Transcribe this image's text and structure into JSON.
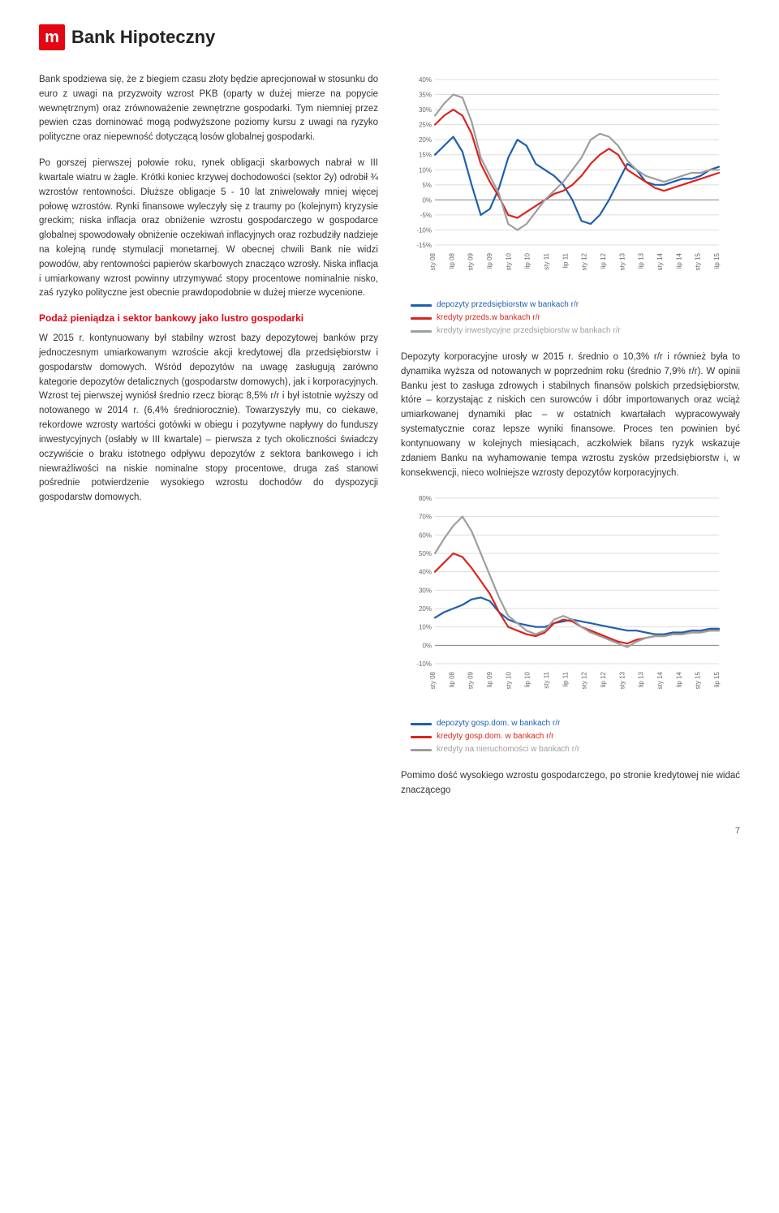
{
  "header": {
    "logo_letter": "m",
    "bank_name": "Bank Hipoteczny"
  },
  "left": {
    "p1": "Bank spodziewa się, że z biegiem czasu złoty będzie aprecjonował w stosunku do euro z uwagi na przyzwoity wzrost PKB (oparty w dużej mierze na popycie wewnętrznym) oraz zrównoważenie zewnętrzne gospodarki. Tym niemniej przez pewien czas dominować mogą podwyższone poziomy kursu z uwagi na ryzyko polityczne oraz niepewność dotyczącą losów globalnej gospodarki.",
    "p2": "Po gorszej pierwszej połowie roku, rynek obligacji skarbowych nabrał w III kwartale wiatru w żagle. Krótki koniec krzywej dochodowości (sektor 2y) odrobił ¾ wzrostów rentowności. Dłuższe obligacje 5 - 10 lat zniwelowały mniej więcej połowę wzrostów. Rynki finansowe wyleczyły się z traumy po (kolejnym) kryzysie greckim; niska inflacja oraz obniżenie wzrostu gospodarczego w gospodarce globalnej spowodowały obniżenie oczekiwań inflacyjnych oraz rozbudziły nadzieje na kolejną rundę stymulacji monetarnej. W obecnej chwili Bank nie widzi powodów, aby rentowności papierów skarbowych znacząco wzrosły. Niska inflacja i umiarkowany wzrost powinny utrzymywać stopy procentowe nominalnie nisko, zaś ryzyko polityczne jest obecnie prawdopodobnie w dużej mierze wycenione.",
    "section_title": "Podaż pieniądza i sektor bankowy jako lustro gospodarki",
    "p3": "W 2015 r. kontynuowany był stabilny wzrost bazy depozytowej banków przy jednoczesnym umiarkowanym wzroście akcji kredytowej dla przedsiębiorstw i gospodarstw domowych. Wśród depozytów na uwagę zasługują zarówno kategorie depozytów detalicznych (gospodarstw domowych), jak i korporacyjnych. Wzrost tej pierwszej wyniósł średnio rzecz biorąc 8,5% r/r i był istotnie wyższy od notowanego w 2014 r. (6,4% średniorocznie). Towarzyszyły mu, co ciekawe, rekordowe wzrosty wartości gotówki w obiegu i pozytywne napływy do funduszy inwestycyjnych (osłabły w III kwartale) – pierwsza z tych okoliczności świadczy oczywiście o braku istotnego odpływu depozytów z sektora bankowego i ich niewrażliwości na niskie nominalne stopy procentowe, druga zaś stanowi pośrednie potwierdzenie wysokiego wzrostu dochodów do dyspozycji gospodarstw domowych."
  },
  "right": {
    "p1": "Depozyty korporacyjne urosły w 2015 r. średnio o 10,3% r/r i również była to dynamika wyższa od notowanych w poprzednim roku (średnio 7,9% r/r). W opinii Banku jest to zasługa zdrowych i stabilnych finansów polskich przedsiębiorstw, które – korzystając z niskich cen surowców i dóbr importowanych oraz wciąż umiarkowanej dynamiki płac – w ostatnich kwartałach wypracowywały systematycznie coraz lepsze wyniki finansowe. Proces ten powinien być kontynuowany w kolejnych miesiącach, aczkolwiek bilans ryzyk wskazuje zdaniem Banku na wyhamowanie tempa wzrostu zysków przedsiębiorstw i, w konsekwencji, nieco wolniejsze wzrosty depozytów korporacyjnych.",
    "p2": "Pomimo dość wysokiego wzrostu gospodarczego, po stronie kredytowej nie widać znaczącego"
  },
  "chart1": {
    "type": "line",
    "ylim": [
      -15,
      40
    ],
    "ytick_step": 5,
    "yticks": [
      "40%",
      "35%",
      "30%",
      "25%",
      "20%",
      "15%",
      "10%",
      "5%",
      "0%",
      "-5%",
      "-10%",
      "-15%"
    ],
    "xlabels": [
      "sty 08",
      "lip 08",
      "sty 09",
      "lip 09",
      "sty 10",
      "lip 10",
      "sty 11",
      "lip 11",
      "sty 12",
      "lip 12",
      "sty 13",
      "lip 13",
      "sty 14",
      "lip 14",
      "sty 15",
      "lip 15"
    ],
    "background_color": "#ffffff",
    "grid_color": "#dddddd",
    "axis_color": "#888888",
    "label_fontsize": 8,
    "line_width": 2.2,
    "series": [
      {
        "name": "depozyty przedsiębiorstw w bankach r/r",
        "color": "#1f5fb0",
        "values": [
          15,
          18,
          21,
          16,
          5,
          -5,
          -3,
          4,
          14,
          20,
          18,
          12,
          10,
          8,
          5,
          0,
          -7,
          -8,
          -5,
          0,
          6,
          12,
          10,
          6,
          5,
          5,
          6,
          7,
          7,
          8,
          10,
          11
        ]
      },
      {
        "name": "kredyty przeds.w bankach r/r",
        "color": "#d9261c",
        "values": [
          25,
          28,
          30,
          28,
          22,
          12,
          6,
          1,
          -5,
          -6,
          -4,
          -2,
          0,
          2,
          3,
          5,
          8,
          12,
          15,
          17,
          15,
          10,
          8,
          6,
          4,
          3,
          4,
          5,
          6,
          7,
          8,
          9
        ]
      },
      {
        "name": "kredyty inwestycyjne przedsiębiorstw w bankach r/r",
        "color": "#9e9e9e",
        "values": [
          28,
          32,
          35,
          34,
          26,
          14,
          8,
          2,
          -8,
          -10,
          -8,
          -4,
          0,
          3,
          6,
          10,
          14,
          20,
          22,
          21,
          18,
          13,
          10,
          8,
          7,
          6,
          7,
          8,
          9,
          9,
          10,
          10
        ]
      }
    ],
    "legend": [
      {
        "label": "depozyty przedsiębiorstw w bankach r/r",
        "color": "#1f5fb0"
      },
      {
        "label": "kredyty przeds.w bankach r/r",
        "color": "#d9261c"
      },
      {
        "label": "kredyty inwestycyjne przedsiębiorstw w bankach r/r",
        "color": "#9e9e9e"
      }
    ]
  },
  "chart2": {
    "type": "line",
    "ylim": [
      -10,
      80
    ],
    "ytick_step": 10,
    "yticks": [
      "80%",
      "70%",
      "60%",
      "50%",
      "40%",
      "30%",
      "20%",
      "10%",
      "0%",
      "-10%"
    ],
    "xlabels": [
      "sty 08",
      "lip 08",
      "sty 09",
      "lip 09",
      "sty 10",
      "lip 10",
      "sty 11",
      "lip 11",
      "sty 12",
      "lip 12",
      "sty 13",
      "lip 13",
      "sty 14",
      "lip 14",
      "sty 15",
      "lip 15"
    ],
    "background_color": "#ffffff",
    "grid_color": "#dddddd",
    "axis_color": "#888888",
    "label_fontsize": 8,
    "line_width": 2.2,
    "series": [
      {
        "name": "depozyty gosp.dom. w bankach r/r",
        "color": "#1f5fb0",
        "values": [
          15,
          18,
          20,
          22,
          25,
          26,
          24,
          18,
          14,
          12,
          11,
          10,
          10,
          12,
          13,
          14,
          13,
          12,
          11,
          10,
          9,
          8,
          8,
          7,
          6,
          6,
          7,
          7,
          8,
          8,
          9,
          9
        ]
      },
      {
        "name": "kredyty gosp.dom. w bankach r/r",
        "color": "#d9261c",
        "values": [
          40,
          45,
          50,
          48,
          42,
          35,
          28,
          18,
          10,
          8,
          6,
          5,
          7,
          12,
          14,
          13,
          10,
          8,
          6,
          4,
          2,
          1,
          3,
          4,
          5,
          5,
          6,
          6,
          7,
          7,
          8,
          8
        ]
      },
      {
        "name": "kredyty na nieruchomości w bankach r/r",
        "color": "#9e9e9e",
        "values": [
          50,
          58,
          65,
          70,
          62,
          50,
          38,
          26,
          16,
          12,
          8,
          6,
          8,
          14,
          16,
          14,
          10,
          7,
          5,
          3,
          1,
          -1,
          2,
          4,
          5,
          5,
          6,
          6,
          7,
          7,
          8,
          8
        ]
      }
    ],
    "legend": [
      {
        "label": "depozyty gosp.dom. w bankach r/r",
        "color": "#1f5fb0"
      },
      {
        "label": "kredyty gosp.dom. w bankach r/r",
        "color": "#d9261c"
      },
      {
        "label": "kredyty na nieruchomości w bankach r/r",
        "color": "#9e9e9e"
      }
    ]
  },
  "page_number": "7"
}
